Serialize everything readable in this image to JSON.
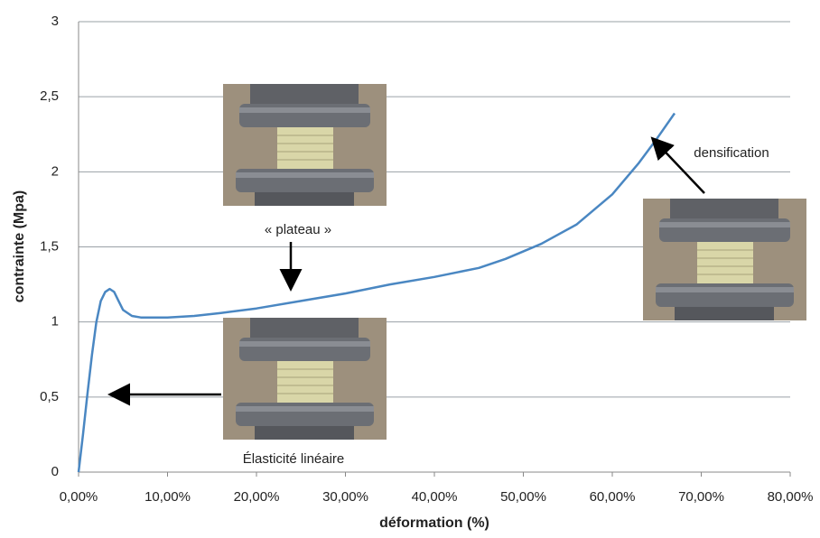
{
  "chart_data": {
    "type": "line",
    "x_label": "déformation (%)",
    "y_label": "contrainte (Mpa)",
    "annotations": [
      "« plateau »",
      "densification",
      "Élasticité linéaire"
    ],
    "x": [
      0,
      0.5,
      1,
      1.5,
      2,
      2.5,
      3,
      3.5,
      4,
      4.5,
      5,
      6,
      7,
      10,
      13,
      16,
      20,
      25,
      30,
      35,
      40,
      45,
      48,
      52,
      56,
      60,
      63,
      65,
      67
    ],
    "values": [
      0,
      0.25,
      0.52,
      0.78,
      1.0,
      1.14,
      1.2,
      1.22,
      1.2,
      1.14,
      1.08,
      1.04,
      1.03,
      1.03,
      1.04,
      1.06,
      1.09,
      1.14,
      1.19,
      1.25,
      1.3,
      1.36,
      1.42,
      1.52,
      1.65,
      1.85,
      2.06,
      2.22,
      2.39
    ],
    "color": "#4a87c2",
    "xlim": [
      0,
      80
    ],
    "xticks": [
      {
        "value": 0,
        "label": "0,00%"
      },
      {
        "value": 10,
        "label": "10,00%"
      },
      {
        "value": 20,
        "label": "20,00%"
      },
      {
        "value": 30,
        "label": "30,00%"
      },
      {
        "value": 40,
        "label": "40,00%"
      },
      {
        "value": 50,
        "label": "50,00%"
      },
      {
        "value": 60,
        "label": "60,00%"
      },
      {
        "value": 70,
        "label": "70,00%"
      },
      {
        "value": 80,
        "label": "80,00%"
      }
    ],
    "ylim": [
      0,
      3
    ],
    "yticks": [
      0,
      {
        "value": 0.5,
        "label": "0,5"
      },
      1,
      {
        "value": 1.5,
        "label": "1,5"
      },
      2,
      {
        "value": 2.5,
        "label": "2,5"
      },
      3
    ],
    "grid": true
  }
}
